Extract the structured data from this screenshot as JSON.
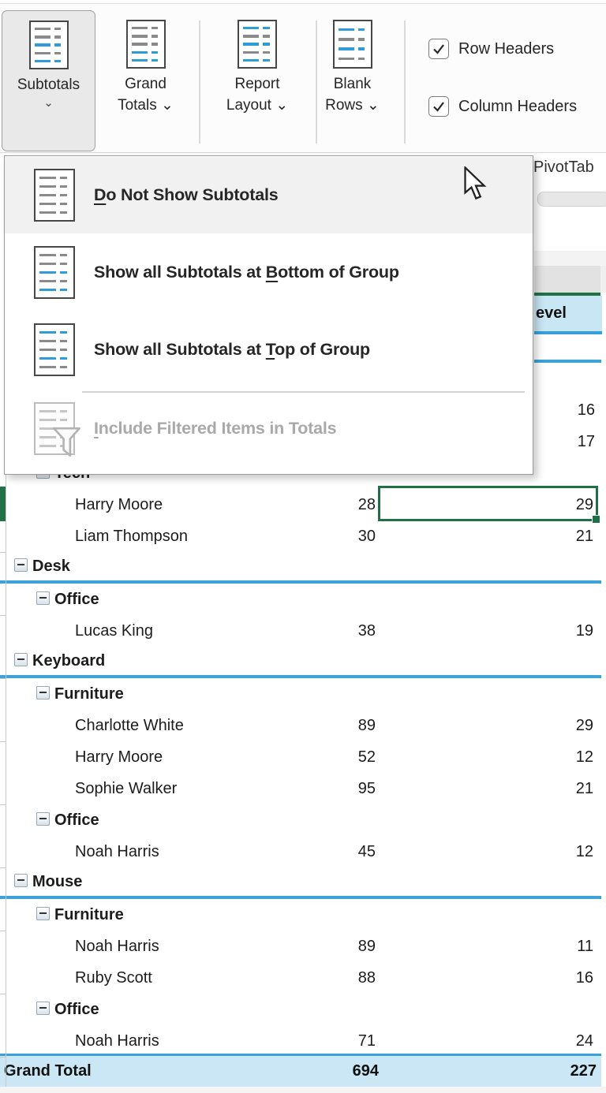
{
  "ribbon": {
    "buttons": [
      {
        "id": "subtotals",
        "lines": [
          "Subtotals"
        ],
        "chevron": "⌄",
        "selected": true,
        "icon": [
          "gray",
          "gray",
          "blue",
          "gray",
          "blue"
        ]
      },
      {
        "id": "grand-totals",
        "lines": [
          "Grand",
          "Totals"
        ],
        "chevron": "⌄",
        "selected": false,
        "icon": [
          "gray",
          "gray",
          "gray",
          "blue",
          "blue"
        ]
      },
      {
        "id": "report-layout",
        "lines": [
          "Report",
          "Layout"
        ],
        "chevron": "⌄",
        "selected": false,
        "icon": [
          "blue",
          "gray",
          "blue",
          "gray",
          "blue"
        ]
      },
      {
        "id": "blank-rows",
        "lines": [
          "Blank",
          "Rows"
        ],
        "chevron": "⌄",
        "selected": false,
        "icon": [
          "blue",
          "gray",
          "blue",
          "gray"
        ]
      }
    ],
    "checkboxes": [
      {
        "id": "row-headers",
        "label": "Row Headers",
        "checked": true
      },
      {
        "id": "column-headers",
        "label": "Column Headers",
        "checked": true
      }
    ]
  },
  "menu": {
    "items": [
      {
        "id": "do-not-show-subtotals",
        "label_pre": "",
        "label_key": "D",
        "label_post": "o Not Show Subtotals",
        "enabled": true,
        "hovered": true,
        "icon": [
          "gray",
          "gray",
          "gray",
          "gray",
          "gray"
        ]
      },
      {
        "id": "show-subtotals-bottom",
        "label_pre": "Show all Subtotals at ",
        "label_key": "B",
        "label_post": "ottom of Group",
        "enabled": true,
        "hovered": false,
        "icon": [
          "gray",
          "gray",
          "blue",
          "gray",
          "blue"
        ]
      },
      {
        "id": "show-subtotals-top",
        "label_pre": "Show all Subtotals at ",
        "label_key": "T",
        "label_post": "op of Group",
        "enabled": true,
        "hovered": false,
        "icon": [
          "blue",
          "gray",
          "gray",
          "blue",
          "gray"
        ]
      },
      {
        "id": "include-filtered-items",
        "label_pre": "",
        "label_key": "I",
        "label_post": "nclude Filtered Items in Totals",
        "enabled": false,
        "hovered": false,
        "icon": [
          "lightgray",
          "lightgray",
          "lightgray",
          "lightgray",
          "lightgray"
        ]
      }
    ]
  },
  "sheet": {
    "ribbon_fragment": "PivotTab",
    "header_fragment": "evel",
    "clipped_values": [
      "16",
      "17"
    ],
    "rows": [
      {
        "type": "category",
        "label": "Tech",
        "v1": "",
        "v2": ""
      },
      {
        "type": "name",
        "label": "Harry Moore",
        "v1": "28",
        "v2": "29",
        "selected": true
      },
      {
        "type": "name",
        "label": "Liam Thompson",
        "v1": "30",
        "v2": "21"
      },
      {
        "type": "product",
        "label": "Desk",
        "v1": "",
        "v2": ""
      },
      {
        "type": "category",
        "label": "Office",
        "v1": "",
        "v2": ""
      },
      {
        "type": "name",
        "label": "Lucas King",
        "v1": "38",
        "v2": "19"
      },
      {
        "type": "product",
        "label": "Keyboard",
        "v1": "",
        "v2": ""
      },
      {
        "type": "category",
        "label": "Furniture",
        "v1": "",
        "v2": ""
      },
      {
        "type": "name",
        "label": "Charlotte White",
        "v1": "89",
        "v2": "29"
      },
      {
        "type": "name",
        "label": "Harry Moore",
        "v1": "52",
        "v2": "12"
      },
      {
        "type": "name",
        "label": "Sophie Walker",
        "v1": "95",
        "v2": "21"
      },
      {
        "type": "category",
        "label": "Office",
        "v1": "",
        "v2": ""
      },
      {
        "type": "name",
        "label": "Noah Harris",
        "v1": "45",
        "v2": "12"
      },
      {
        "type": "product",
        "label": "Mouse",
        "v1": "",
        "v2": ""
      },
      {
        "type": "category",
        "label": "Furniture",
        "v1": "",
        "v2": ""
      },
      {
        "type": "name",
        "label": "Noah Harris",
        "v1": "89",
        "v2": "11"
      },
      {
        "type": "name",
        "label": "Ruby Scott",
        "v1": "88",
        "v2": "16"
      },
      {
        "type": "category",
        "label": "Office",
        "v1": "",
        "v2": ""
      },
      {
        "type": "name",
        "label": "Noah Harris",
        "v1": "71",
        "v2": "24"
      }
    ],
    "grand_total": {
      "label": "Grand Total",
      "v1": "694",
      "v2": "227"
    },
    "selected_cell": {
      "row_label": "Harry Moore",
      "value": "29"
    },
    "colors": {
      "accent_green": "#217346",
      "accent_blue": "#38a1d9",
      "header_fill": "#c9e6f4",
      "total_fill": "#cbe6f4"
    }
  }
}
